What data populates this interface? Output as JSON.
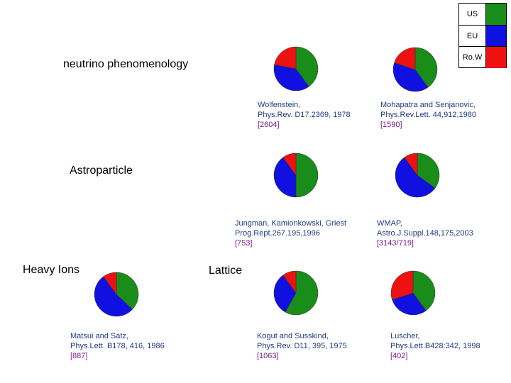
{
  "legend": [
    {
      "label": "US",
      "color": "#1a8c1a"
    },
    {
      "label": "EU",
      "color": "#1010e0"
    },
    {
      "label": "Ro.W",
      "color": "#ee1111"
    }
  ],
  "sections": {
    "neutrino": "neutrino phenomenology",
    "astro": "Astroparticle",
    "heavy": "Heavy Ions",
    "lattice": "Lattice"
  },
  "chart_data": [
    {
      "type": "pie",
      "categories": [
        "US",
        "EU",
        "Ro.W"
      ],
      "values": [
        40,
        38,
        22
      ],
      "citation": {
        "line1": "Wolfenstein,",
        "line2": "Phys.Rev. D17.2369, 1978",
        "count": "[2604]"
      }
    },
    {
      "type": "pie",
      "categories": [
        "US",
        "EU",
        "Ro.W"
      ],
      "values": [
        40,
        40,
        20
      ],
      "citation": {
        "line1": "Mohapatra and Senjanovic,",
        "line2": "Phys.Rev.Lett. 44,912,1980",
        "count": "[1590]"
      }
    },
    {
      "type": "pie",
      "categories": [
        "US",
        "EU",
        "Ro.W"
      ],
      "values": [
        50,
        40,
        10
      ],
      "citation": {
        "line1": "Jungman, Kamionkowski, Griest",
        "line2": "Prog.Rept.267.195,1996",
        "count": "[753]"
      }
    },
    {
      "type": "pie",
      "categories": [
        "US",
        "EU",
        "Ro.W"
      ],
      "values": [
        35,
        55,
        10
      ],
      "citation": {
        "line1": "WMAP,",
        "line2": "Astro.J.Suppl.148,175,2003",
        "count": "[3143/719]"
      }
    },
    {
      "type": "pie",
      "categories": [
        "US",
        "EU",
        "Ro.W"
      ],
      "values": [
        37,
        53,
        10
      ],
      "citation": {
        "line1": "Matsui and Satz,",
        "line2": "Phys.Lett. B178, 416, 1986",
        "count": "[887]"
      }
    },
    {
      "type": "pie",
      "categories": [
        "US",
        "EU",
        "Ro.W"
      ],
      "values": [
        58,
        32,
        10
      ],
      "citation": {
        "line1": "Kogut and Susskind,",
        "line2": "Phys.Rev. D11, 395, 1975",
        "count": "[1063]"
      }
    },
    {
      "type": "pie",
      "categories": [
        "US",
        "EU",
        "Ro.W"
      ],
      "values": [
        40,
        30,
        30
      ],
      "citation": {
        "line1": "Luscher,",
        "line2": "Phys.Lett.B428:342, 1998",
        "count": "[402]"
      }
    }
  ]
}
